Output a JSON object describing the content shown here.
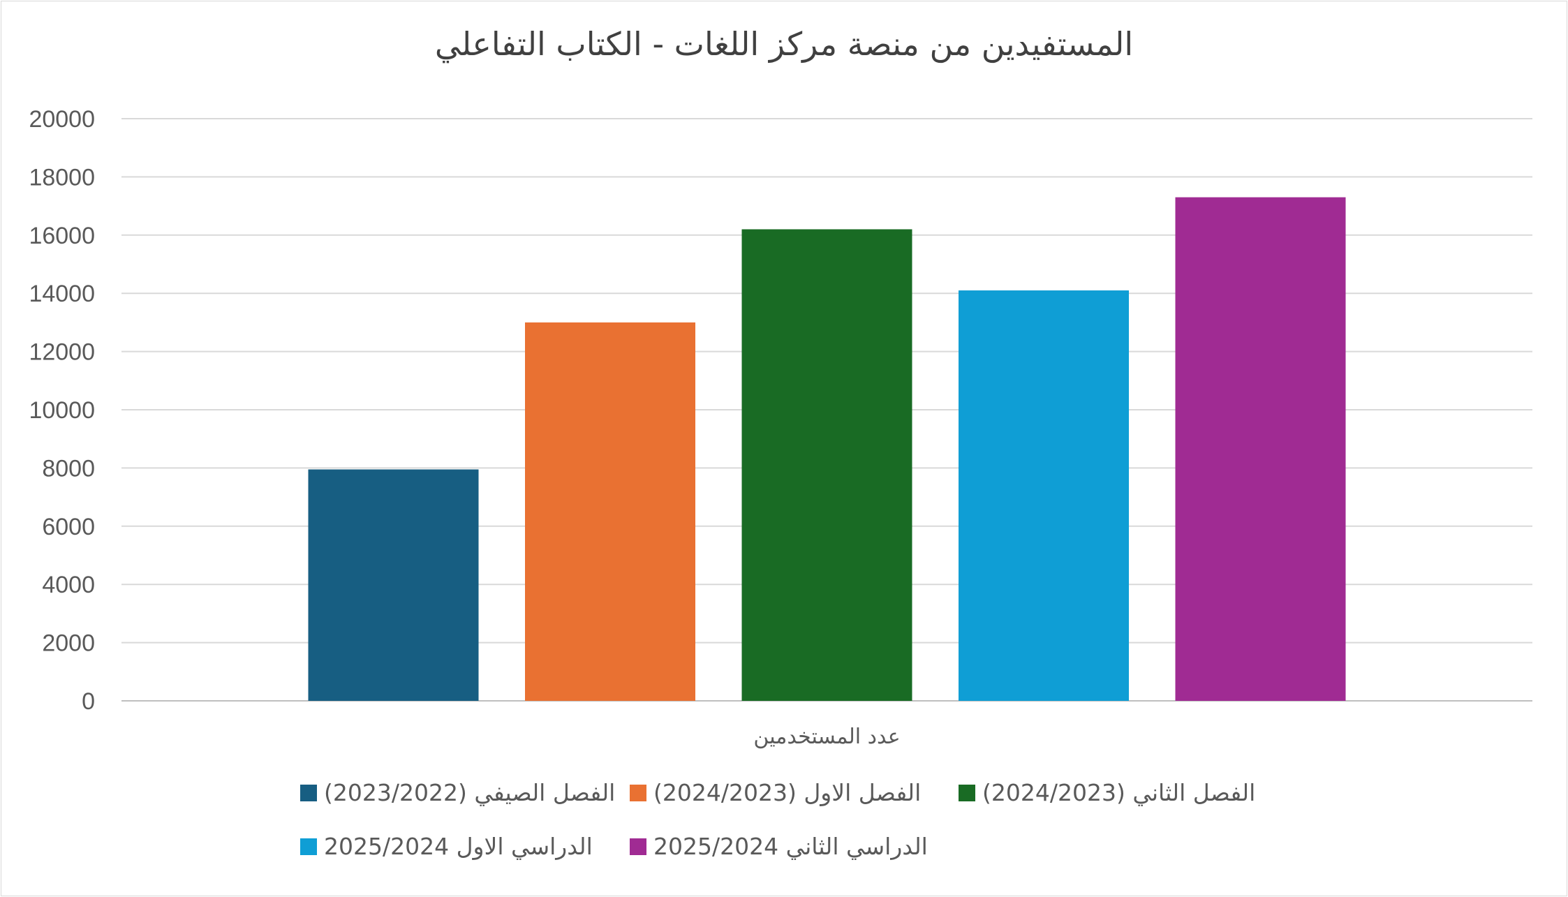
{
  "chart_data": {
    "type": "bar",
    "title": "المستفيدين من منصة مركز اللغات - الكتاب  التفاعلي",
    "categories": [
      "عدد المستخدمين"
    ],
    "series": [
      {
        "name": "الفصل الصيفي (2023/2022)",
        "values": [
          7950
        ],
        "color": "#175E82"
      },
      {
        "name": "الفصل الاول  (2024/2023)",
        "values": [
          13000
        ],
        "color": "#E97132"
      },
      {
        "name": "الفصل الثاني  (2024/2023)",
        "values": [
          16200
        ],
        "color": "#196B24"
      },
      {
        "name": "الدراسي الاول 2025/2024",
        "values": [
          14100
        ],
        "color": "#0F9ED5"
      },
      {
        "name": "الدراسي الثاني 2025/2024",
        "values": [
          17300
        ],
        "color": "#A02B93"
      }
    ],
    "ylim": [
      0,
      20000
    ],
    "yticks": [
      "0",
      "2000",
      "4000",
      "6000",
      "8000",
      "10000",
      "12000",
      "14000",
      "16000",
      "18000",
      "20000"
    ],
    "grid": true,
    "legend": "bottom"
  }
}
